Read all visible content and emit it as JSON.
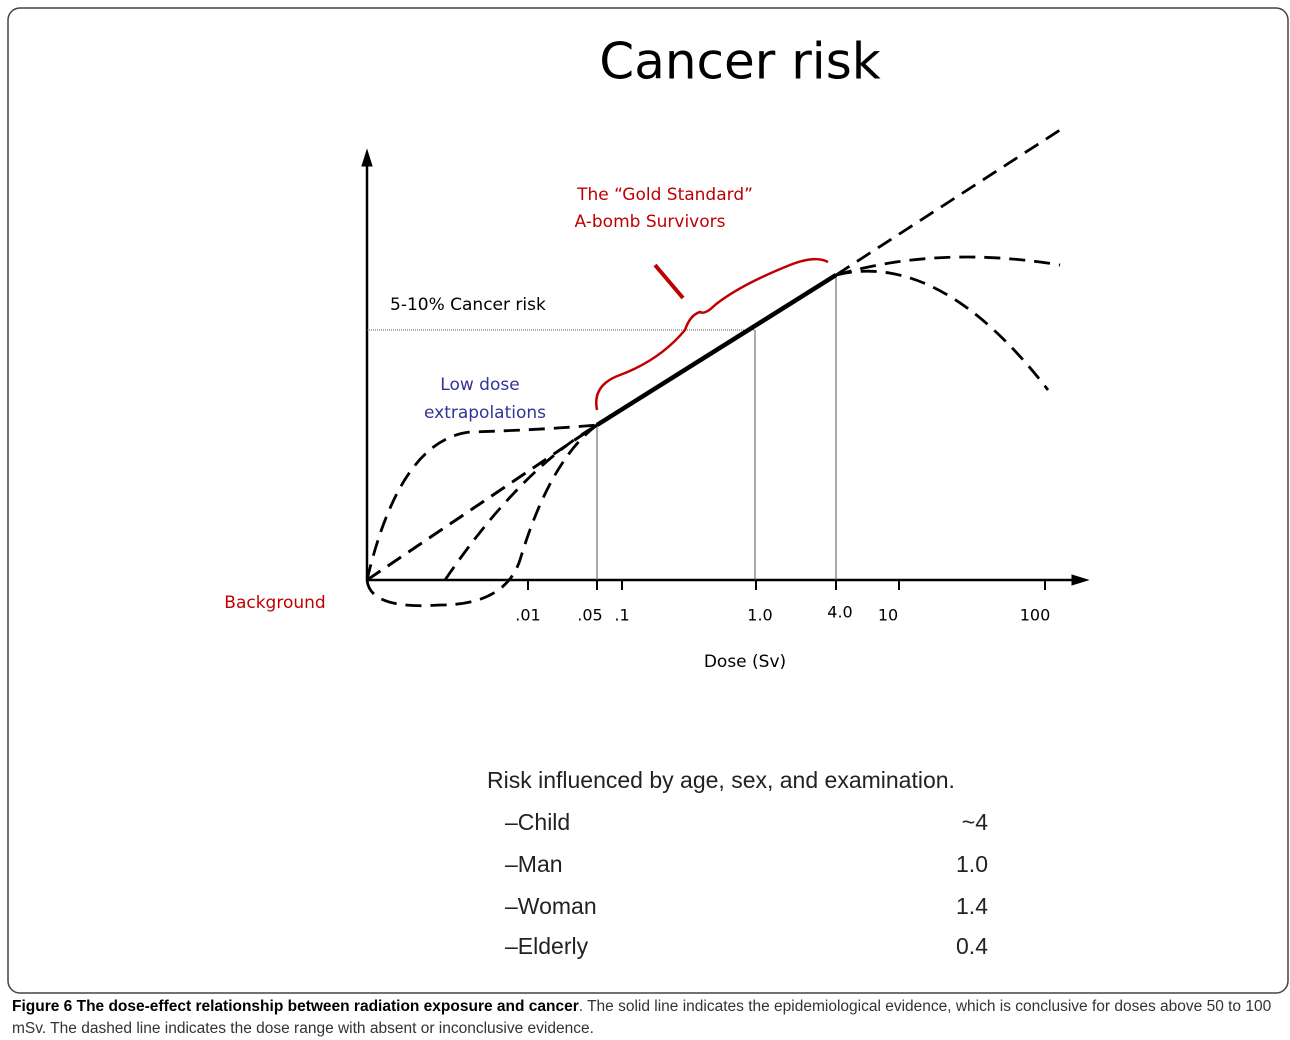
{
  "title": "Cancer risk",
  "annotations": {
    "gold_standard": "The “Gold Standard”",
    "a_bomb": "A-bomb Survivors",
    "risk_level": "5-10% Cancer risk",
    "low_dose": "Low dose",
    "extrapolations": "extrapolations",
    "background": "Background"
  },
  "x_axis": {
    "label": "Dose (Sv)",
    "ticks": [
      ".01",
      ".05",
      ".1",
      "1.0",
      "4.0",
      "10",
      "100"
    ]
  },
  "risk_table": {
    "heading": "Risk influenced by age, sex, and examination.",
    "rows": [
      [
        "–Child",
        "~4"
      ],
      [
        "–Man",
        "1.0"
      ],
      [
        "–Woman",
        "1.4"
      ],
      [
        "–Elderly",
        "0.4"
      ]
    ]
  },
  "caption": {
    "label": "Figure 6 The dose-effect relationship between radiation exposure and cancer",
    "text": ". The solid line indicates the epidemiological evidence, which is conclusive for doses above 50 to 100 mSv. The dashed line indicates the dose range with absent or inconclusive evidence."
  }
}
